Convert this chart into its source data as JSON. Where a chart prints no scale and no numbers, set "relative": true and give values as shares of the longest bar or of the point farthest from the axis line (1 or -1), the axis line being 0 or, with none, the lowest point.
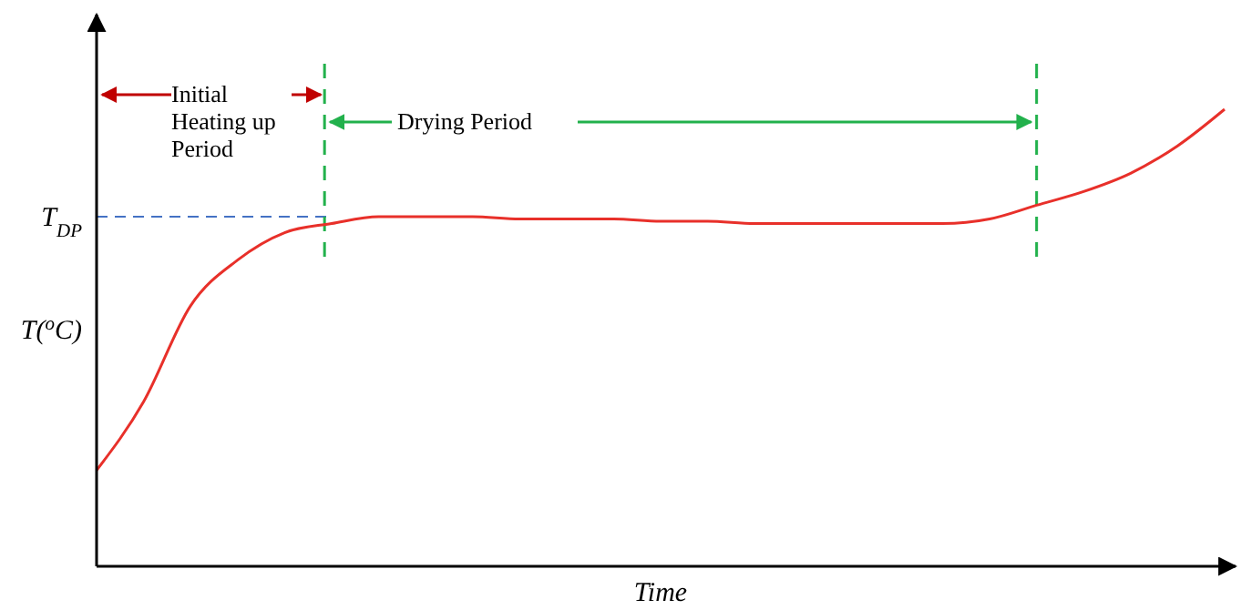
{
  "chart_data": {
    "type": "line",
    "relative": true,
    "xlabel": "Time",
    "ylabel": "T($^{o}$C)",
    "categories": [
      null,
      null,
      null,
      null,
      null,
      null,
      null,
      null,
      null,
      null,
      null,
      null,
      null,
      null,
      null,
      null,
      null,
      null,
      null,
      null,
      null,
      null,
      null,
      null,
      null
    ],
    "series": [
      {
        "color": "#e8302a",
        "values": [
          0.21,
          0.36,
          0.57,
          0.67,
          0.73,
          0.75,
          0.765,
          0.765,
          0.765,
          0.76,
          0.76,
          0.76,
          0.755,
          0.755,
          0.75,
          0.75,
          0.75,
          0.75,
          0.75,
          0.76,
          0.79,
          0.82,
          0.86,
          0.92,
          1
        ]
      }
    ],
    "ref_lines": [
      {
        "axis": "y",
        "value": 0.765,
        "label": "T$_{DP}$",
        "color": "#4472c4",
        "line_style": "dashed"
      }
    ],
    "annotations": [
      "Initial Heating up Period",
      "Drying Period"
    ],
    "grid": false,
    "marker": "none",
    "line_style": "solid"
  }
}
